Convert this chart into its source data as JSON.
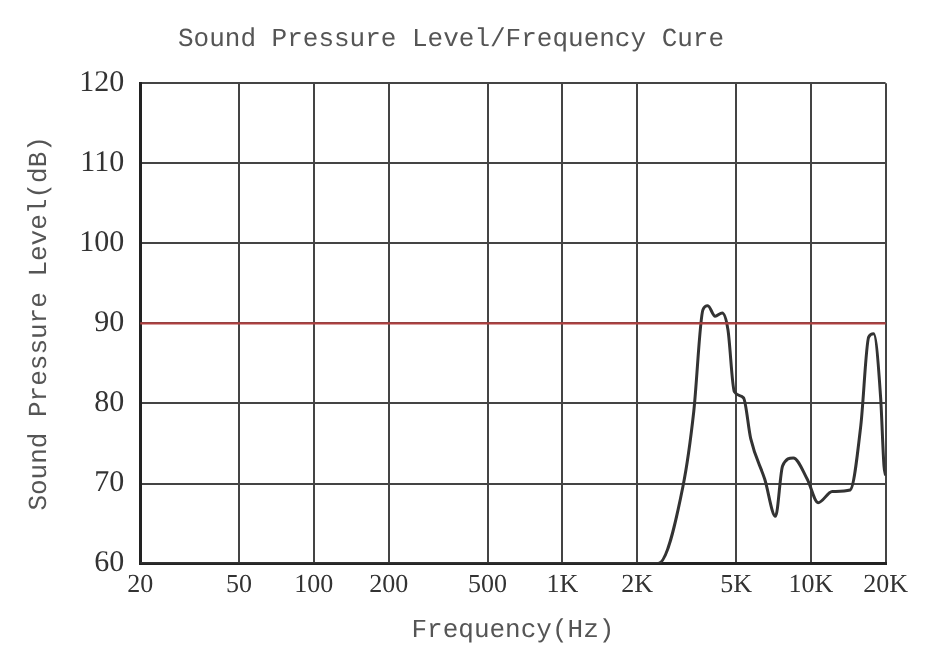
{
  "chart_data": {
    "type": "line",
    "title": "Sound Pressure Level/Frequency Cure",
    "xlabel": "Frequency(Hz)",
    "ylabel": "Sound Pressure Level(dB)",
    "log": "x",
    "grid": true,
    "legend": false,
    "marker": "none",
    "line_style": "solid",
    "xlim": [
      20,
      20000
    ],
    "xticks": [
      20,
      50,
      100,
      200,
      500,
      {
        "value": 1000,
        "label": "1K"
      },
      {
        "value": 2000,
        "label": "2K"
      },
      {
        "value": 5000,
        "label": "5K"
      },
      {
        "value": 10000,
        "label": "10K"
      },
      {
        "value": 20000,
        "label": "20K"
      }
    ],
    "ylim": [
      60,
      120
    ],
    "yticks": [
      60,
      70,
      80,
      90,
      100,
      110,
      120
    ],
    "ref_lines": [
      {
        "axis": "y",
        "value": 90,
        "color": "#b04040"
      }
    ],
    "series": [
      {
        "color": "#333333",
        "x": [
          20,
          2430,
          3060,
          3380,
          3680,
          3850,
          4120,
          4400,
          4640,
          4920,
          5360,
          5730,
          6530,
          7210,
          7700,
          8500,
          9690,
          10700,
          12200,
          14400,
          15900,
          17100,
          17900,
          19100,
          19700,
          20000
        ],
        "values": [
          60,
          60,
          69.7,
          79,
          91.7,
          92.2,
          90.9,
          91.3,
          89.2,
          81.5,
          80.7,
          75.6,
          70.5,
          65.9,
          72.2,
          73.2,
          70.5,
          67.6,
          69,
          69.2,
          77.3,
          88.3,
          88.7,
          80.7,
          72.2,
          71
        ]
      }
    ]
  }
}
